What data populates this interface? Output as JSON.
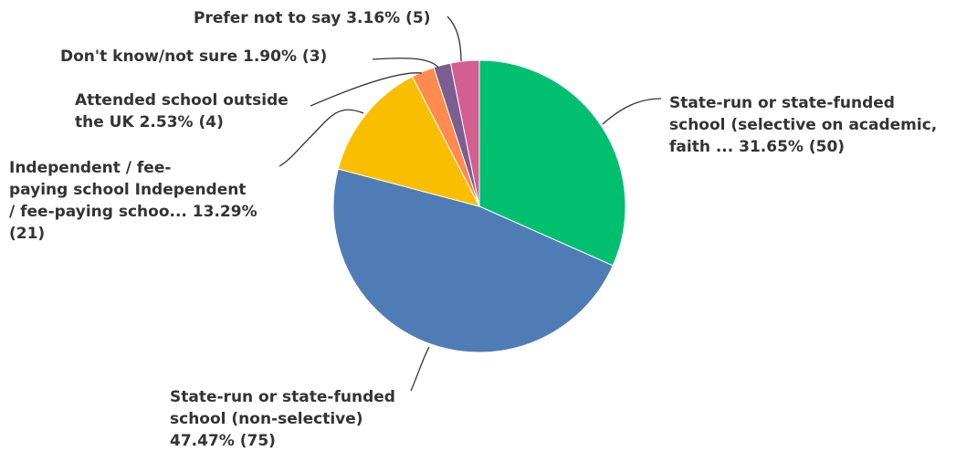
{
  "chart_data": {
    "type": "pie",
    "slices": [
      {
        "label": "State-run or state-funded school (selective on academic, faith ...",
        "percent": 31.65,
        "count": 50,
        "color": "#00bf6f",
        "label_lines": [
          "State-run or state-funded",
          "school (selective on academic,",
          "faith ... 31.65% (50)"
        ]
      },
      {
        "label": "State-run or state-funded school (non-selective)",
        "percent": 47.47,
        "count": 75,
        "color": "#507cb6",
        "label_lines": [
          "State-run or state-funded",
          "school (non-selective)",
          "47.47% (75)"
        ]
      },
      {
        "label": "Independent / fee-paying school Independent / fee-paying schoo...",
        "percent": 13.29,
        "count": 21,
        "color": "#f9be00",
        "label_lines": [
          "Independent / fee-",
          "paying school Independent",
          "/ fee-paying schoo... 13.29%",
          "(21)"
        ]
      },
      {
        "label": "Attended school outside the UK",
        "percent": 2.53,
        "count": 4,
        "color": "#ff8b4f",
        "label_lines": [
          "Attended school outside",
          "the UK 2.53% (4)"
        ]
      },
      {
        "label": "Don't know/not sure",
        "percent": 1.9,
        "count": 3,
        "color": "#7d5e90",
        "label_lines": [
          "Don't know/not sure 1.90% (3)"
        ]
      },
      {
        "label": "Prefer not to say",
        "percent": 3.16,
        "count": 5,
        "color": "#d25f90",
        "label_lines": [
          "Prefer not to say  3.16% (5)"
        ]
      }
    ]
  }
}
